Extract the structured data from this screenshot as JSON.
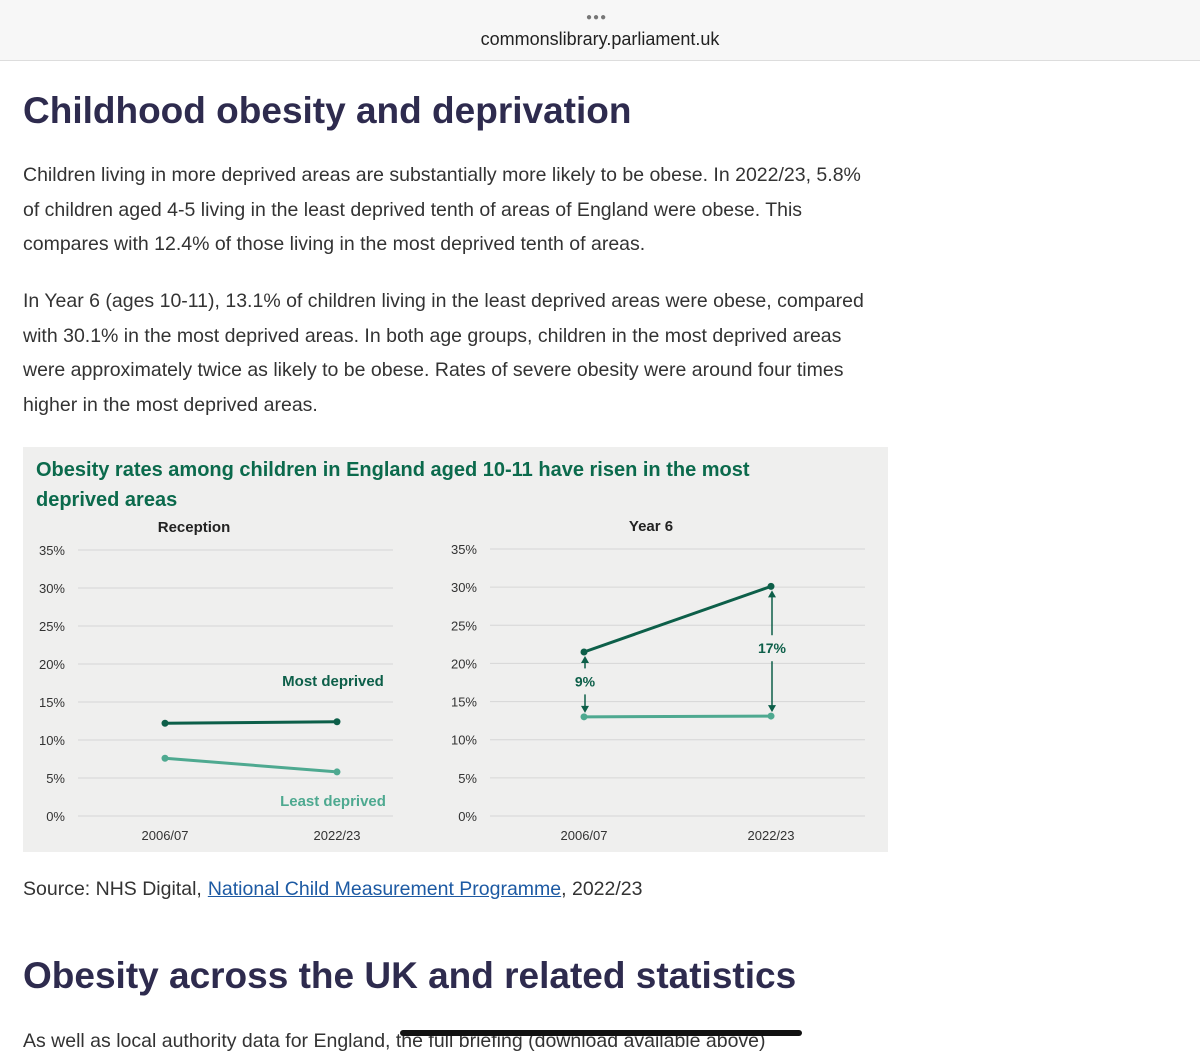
{
  "header": {
    "url": "commonslibrary.parliament.uk"
  },
  "article": {
    "heading": "Childhood obesity and deprivation",
    "paragraphs": [
      "Children living in more deprived areas are substantially more likely to be obese. In 2022/23, 5.8% of children aged 4-5 living in the least deprived tenth of areas of England were obese. This compares with 12.4% of those living in the most deprived tenth of areas.",
      "In Year 6 (ages 10-11), 13.1% of children living in the least deprived areas were obese, compared with 30.1% in the most deprived areas. In both age groups, children in the most deprived areas were approximately twice as likely to be obese. Rates of severe obesity were around four times higher in the most deprived areas."
    ],
    "figure_title": "Obesity rates among children in England aged 10-11 have risen in the most deprived areas",
    "source": {
      "prefix": "Source: NHS Digital,",
      "link": "National Child Measurement Programme",
      "suffix": ", 2022/23"
    },
    "heading2": "Obesity across the UK and related statistics",
    "paragraph3": "As well as local authority data for England, the full briefing (download available above)"
  },
  "chart_data": [
    {
      "type": "line",
      "title": "Reception",
      "categories": [
        "2006/07",
        "2022/23"
      ],
      "series": [
        {
          "name": "Most deprived",
          "color": "#0d5f49",
          "values": [
            12.2,
            12.4
          ]
        },
        {
          "name": "Least deprived",
          "color": "#4ea990",
          "values": [
            7.6,
            5.8
          ]
        }
      ],
      "ylim": [
        0,
        35
      ],
      "yticks": [
        {
          "value": 0,
          "label": "0%"
        },
        {
          "value": 5,
          "label": "5%"
        },
        {
          "value": 10,
          "label": "10%"
        },
        {
          "value": 15,
          "label": "15%"
        },
        {
          "value": 20,
          "label": "20%"
        },
        {
          "value": 25,
          "label": "25%"
        },
        {
          "value": 30,
          "label": "30%"
        },
        {
          "value": 35,
          "label": "35%"
        }
      ],
      "grid": true
    },
    {
      "type": "line",
      "title": "Year 6",
      "categories": [
        "2006/07",
        "2022/23"
      ],
      "series": [
        {
          "color": "#0d5f49",
          "values": [
            21.5,
            30.1
          ]
        },
        {
          "color": "#4ea990",
          "values": [
            13.0,
            13.1
          ]
        }
      ],
      "annotations": [
        "9%",
        "17%"
      ],
      "ylim": [
        0,
        35
      ],
      "yticks": [
        {
          "value": 0,
          "label": "0%"
        },
        {
          "value": 5,
          "label": "5%"
        },
        {
          "value": 10,
          "label": "10%"
        },
        {
          "value": 15,
          "label": "15%"
        },
        {
          "value": 20,
          "label": "20%"
        },
        {
          "value": 25,
          "label": "25%"
        },
        {
          "value": 30,
          "label": "30%"
        },
        {
          "value": 35,
          "label": "35%"
        }
      ],
      "grid": true
    }
  ]
}
